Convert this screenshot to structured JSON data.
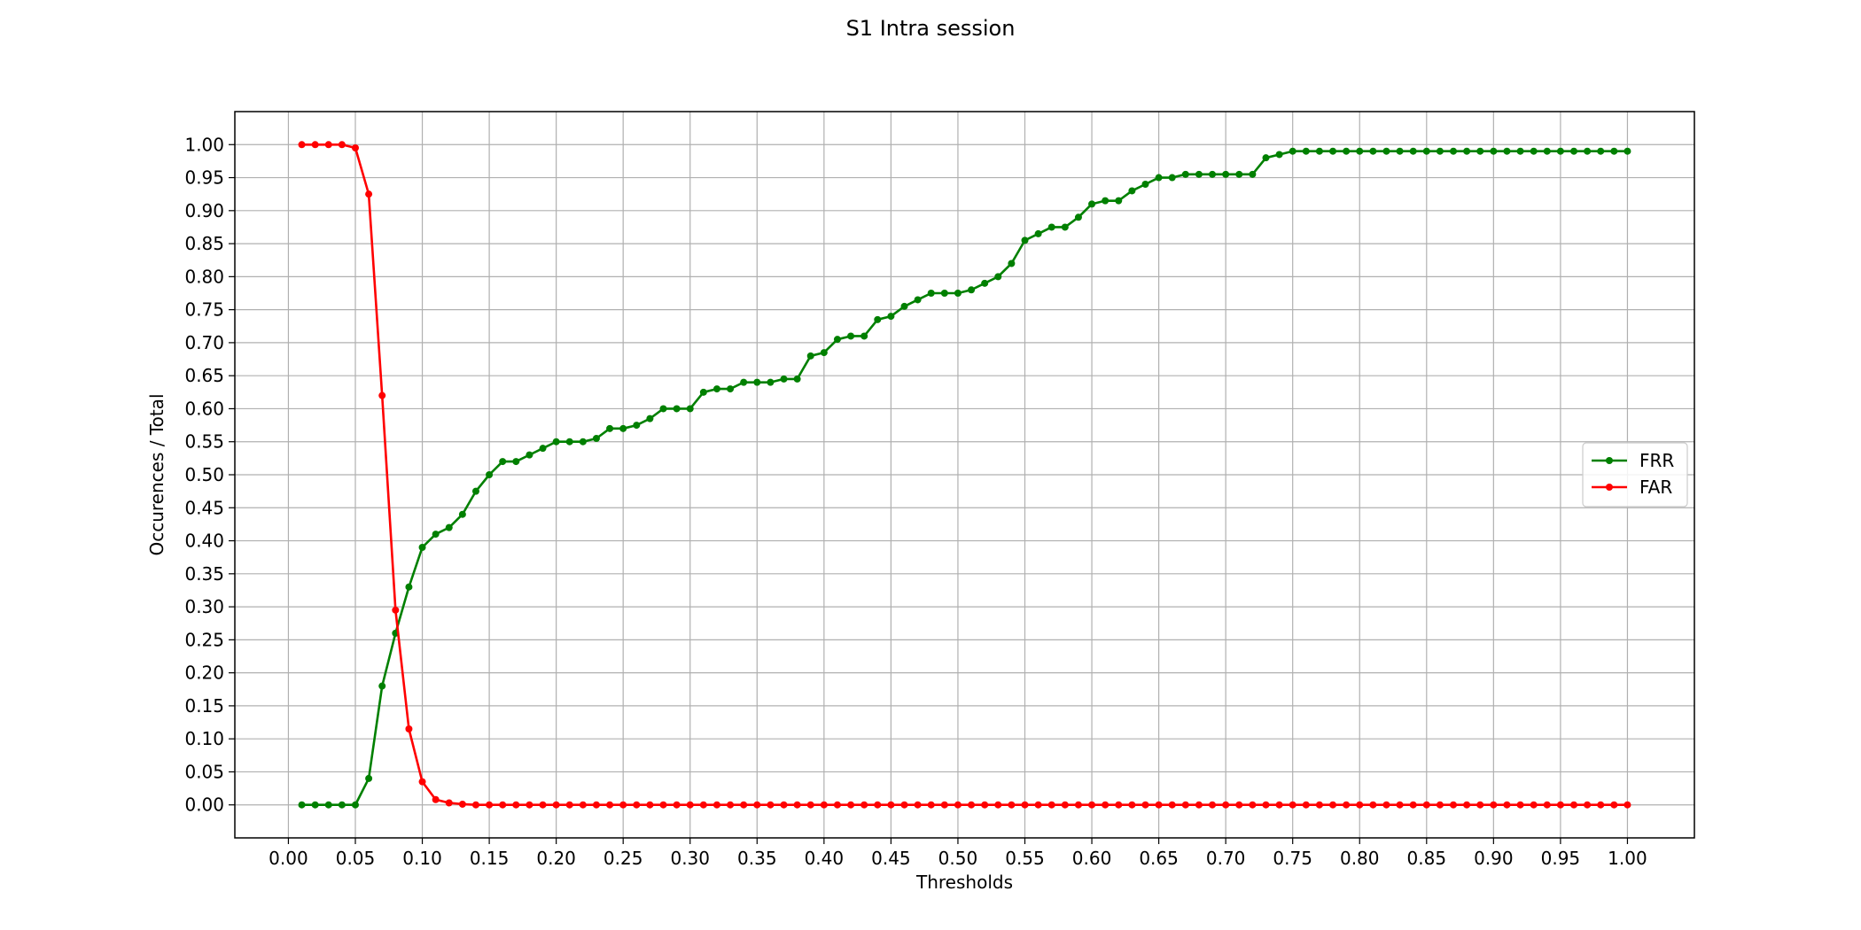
{
  "chart_data": {
    "type": "line",
    "title": "S1 Intra session",
    "xlabel": "Thresholds",
    "ylabel": "Occurences / Total",
    "xlim": [
      -0.04,
      1.05
    ],
    "ylim": [
      -0.05,
      1.05
    ],
    "x_ticks": [
      "0.00",
      "0.05",
      "0.10",
      "0.15",
      "0.20",
      "0.25",
      "0.30",
      "0.35",
      "0.40",
      "0.45",
      "0.50",
      "0.55",
      "0.60",
      "0.65",
      "0.70",
      "0.75",
      "0.80",
      "0.85",
      "0.90",
      "0.95",
      "1.00"
    ],
    "y_ticks": [
      "0.00",
      "0.05",
      "0.10",
      "0.15",
      "0.20",
      "0.25",
      "0.30",
      "0.35",
      "0.40",
      "0.45",
      "0.50",
      "0.55",
      "0.60",
      "0.65",
      "0.70",
      "0.75",
      "0.80",
      "0.85",
      "0.90",
      "0.95",
      "1.00"
    ],
    "grid": true,
    "legend_position": "center-right",
    "x": [
      0.01,
      0.02,
      0.03,
      0.04,
      0.05,
      0.06,
      0.07,
      0.08,
      0.09,
      0.1,
      0.11,
      0.12,
      0.13,
      0.14,
      0.15,
      0.16,
      0.17,
      0.18,
      0.19,
      0.2,
      0.21,
      0.22,
      0.23,
      0.24,
      0.25,
      0.26,
      0.27,
      0.28,
      0.29,
      0.3,
      0.31,
      0.32,
      0.33,
      0.34,
      0.35,
      0.36,
      0.37,
      0.38,
      0.39,
      0.4,
      0.41,
      0.42,
      0.43,
      0.44,
      0.45,
      0.46,
      0.47,
      0.48,
      0.49,
      0.5,
      0.51,
      0.52,
      0.53,
      0.54,
      0.55,
      0.56,
      0.57,
      0.58,
      0.59,
      0.6,
      0.61,
      0.62,
      0.63,
      0.64,
      0.65,
      0.66,
      0.67,
      0.68,
      0.69,
      0.7,
      0.71,
      0.72,
      0.73,
      0.74,
      0.75,
      0.76,
      0.77,
      0.78,
      0.79,
      0.8,
      0.81,
      0.82,
      0.83,
      0.84,
      0.85,
      0.86,
      0.87,
      0.88,
      0.89,
      0.9,
      0.91,
      0.92,
      0.93,
      0.94,
      0.95,
      0.96,
      0.97,
      0.98,
      0.99,
      1.0
    ],
    "series": [
      {
        "name": "FRR",
        "color": "#008000",
        "values": [
          0,
          0,
          0,
          0,
          0,
          0.04,
          0.18,
          0.26,
          0.33,
          0.39,
          0.41,
          0.42,
          0.44,
          0.475,
          0.5,
          0.52,
          0.52,
          0.53,
          0.54,
          0.55,
          0.55,
          0.55,
          0.555,
          0.57,
          0.57,
          0.575,
          0.585,
          0.6,
          0.6,
          0.6,
          0.625,
          0.63,
          0.63,
          0.64,
          0.64,
          0.64,
          0.645,
          0.645,
          0.68,
          0.685,
          0.705,
          0.71,
          0.71,
          0.735,
          0.74,
          0.755,
          0.765,
          0.775,
          0.775,
          0.775,
          0.78,
          0.79,
          0.8,
          0.82,
          0.855,
          0.865,
          0.875,
          0.875,
          0.89,
          0.91,
          0.915,
          0.915,
          0.93,
          0.94,
          0.95,
          0.95,
          0.955,
          0.955,
          0.955,
          0.955,
          0.955,
          0.955,
          0.98,
          0.985,
          0.99,
          0.99,
          0.99,
          0.99,
          0.99,
          0.99,
          0.99,
          0.99,
          0.99,
          0.99,
          0.99,
          0.99,
          0.99,
          0.99,
          0.99,
          0.99,
          0.99,
          0.99,
          0.99,
          0.99,
          0.99,
          0.99,
          0.99,
          0.99,
          0.99,
          0.99
        ]
      },
      {
        "name": "FAR",
        "color": "#ff0000",
        "values": [
          1.0,
          1.0,
          1.0,
          1.0,
          0.995,
          0.925,
          0.62,
          0.295,
          0.115,
          0.035,
          0.008,
          0.003,
          0.001,
          0,
          0,
          0,
          0,
          0,
          0,
          0,
          0,
          0,
          0,
          0,
          0,
          0,
          0,
          0,
          0,
          0,
          0,
          0,
          0,
          0,
          0,
          0,
          0,
          0,
          0,
          0,
          0,
          0,
          0,
          0,
          0,
          0,
          0,
          0,
          0,
          0,
          0,
          0,
          0,
          0,
          0,
          0,
          0,
          0,
          0,
          0,
          0,
          0,
          0,
          0,
          0,
          0,
          0,
          0,
          0,
          0,
          0,
          0,
          0,
          0,
          0,
          0,
          0,
          0,
          0,
          0,
          0,
          0,
          0,
          0,
          0,
          0,
          0,
          0,
          0,
          0,
          0,
          0,
          0,
          0,
          0,
          0,
          0,
          0,
          0,
          0
        ]
      }
    ]
  }
}
